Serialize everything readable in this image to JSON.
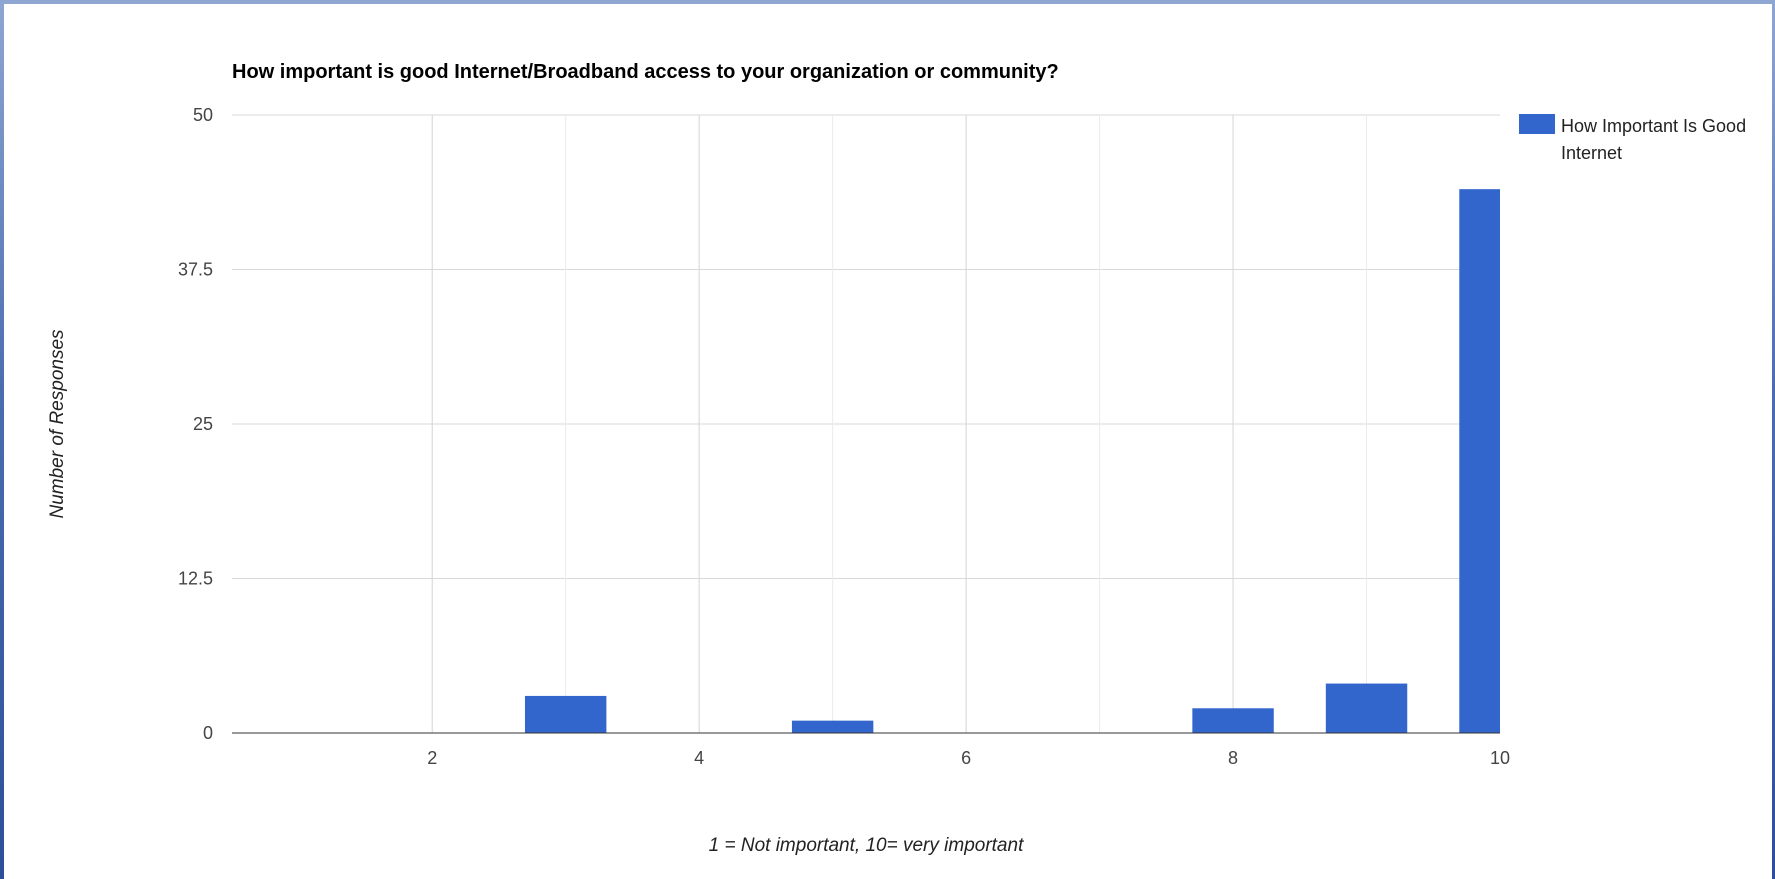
{
  "chart_data": {
    "type": "bar",
    "title": "How important is good Internet/Broadband access to your organization or community?",
    "xlabel": "1 = Not important, 10= very important",
    "ylabel": "Number of Responses",
    "x": [
      1,
      2,
      3,
      4,
      5,
      6,
      7,
      8,
      9,
      10
    ],
    "series": [
      {
        "name": "How Important Is Good Internet",
        "values": [
          0,
          0,
          3,
          0,
          1,
          0,
          0,
          2,
          4,
          44
        ],
        "color": "#3366cc"
      }
    ],
    "x_ticks": [
      "2",
      "4",
      "6",
      "8",
      "10"
    ],
    "x_tick_values": [
      2,
      4,
      6,
      8,
      10
    ],
    "y_ticks": [
      "0",
      "12.5",
      "25",
      "37.5",
      "50"
    ],
    "y_tick_values": [
      0,
      12.5,
      25,
      37.5,
      50
    ],
    "xlim": [
      1,
      10
    ],
    "ylim": [
      0,
      50
    ],
    "grid": true,
    "legend_position": "right",
    "legend_lines": [
      "How Important Is Good",
      "Internet"
    ]
  }
}
